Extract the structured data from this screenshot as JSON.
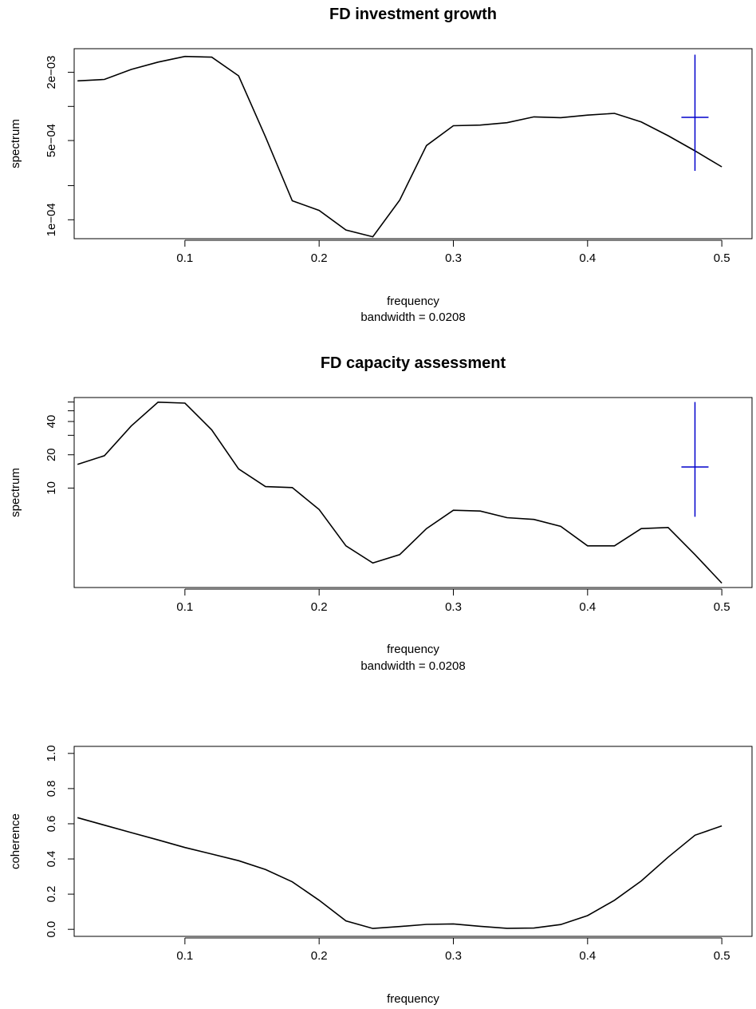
{
  "chart_data": [
    {
      "type": "line",
      "title": "FD investment growth",
      "xlabel": "frequency",
      "sub": "bandwidth = 0.0208",
      "ylabel": "spectrum",
      "log_y": true,
      "xlim": [
        0.0175,
        0.5225
      ],
      "ylim": [
        6.81e-05,
        0.00323
      ],
      "xticks": [
        0.1,
        0.2,
        0.3,
        0.4,
        0.5
      ],
      "xtick_labels": [
        "0.1",
        "0.2",
        "0.3",
        "0.4",
        "0.5"
      ],
      "yticks": [
        0.0001,
        0.0002,
        0.0005,
        0.001,
        0.002
      ],
      "ytick_labels": [
        "1e−04",
        "",
        "5e−04",
        "",
        "2e−03"
      ],
      "x": [
        0.02,
        0.04,
        0.06,
        0.08,
        0.1,
        0.12,
        0.14,
        0.16,
        0.18,
        0.2,
        0.22,
        0.24,
        0.26,
        0.28,
        0.3,
        0.32,
        0.34,
        0.36,
        0.38,
        0.4,
        0.42,
        0.44,
        0.46,
        0.48,
        0.5
      ],
      "y": [
        0.00168,
        0.00173,
        0.00212,
        0.00246,
        0.00276,
        0.00272,
        0.00186,
        0.000539,
        0.000147,
        0.000121,
        8.13e-05,
        7.08e-05,
        0.000149,
        0.000452,
        0.000676,
        0.000684,
        0.000718,
        0.000809,
        0.000796,
        0.000838,
        0.000869,
        0.000729,
        0.000552,
        0.000405,
        0.000293
      ],
      "ci": {
        "x": 0.48,
        "center": 0.000801,
        "lower": 0.00027,
        "upper": 0.00286,
        "color": "#0000cc"
      },
      "line_color": "#000000"
    },
    {
      "type": "line",
      "title": "FD capacity assessment",
      "xlabel": "frequency",
      "sub": "bandwidth = 0.0208",
      "ylabel": "spectrum",
      "log_y": true,
      "xlim": [
        0.0175,
        0.5225
      ],
      "ylim": [
        1.26,
        65.9
      ],
      "xticks": [
        0.1,
        0.2,
        0.3,
        0.4,
        0.5
      ],
      "xtick_labels": [
        "0.1",
        "0.2",
        "0.3",
        "0.4",
        "0.5"
      ],
      "yticks": [
        10,
        20,
        30,
        40,
        50,
        60
      ],
      "ytick_labels": [
        "10",
        "20",
        "",
        "40",
        "",
        ""
      ],
      "x": [
        0.02,
        0.04,
        0.06,
        0.08,
        0.1,
        0.12,
        0.14,
        0.16,
        0.18,
        0.2,
        0.22,
        0.24,
        0.26,
        0.28,
        0.3,
        0.32,
        0.34,
        0.36,
        0.38,
        0.4,
        0.42,
        0.44,
        0.46,
        0.48,
        0.5
      ],
      "y": [
        16.4,
        19.6,
        36.4,
        59.8,
        58.7,
        33.6,
        14.9,
        10.3,
        10.1,
        6.4,
        3.0,
        2.1,
        2.5,
        4.3,
        6.3,
        6.2,
        5.4,
        5.2,
        4.5,
        3.0,
        3.0,
        4.3,
        4.4,
        2.5,
        1.38
      ],
      "ci": {
        "x": 0.48,
        "center": 15.5,
        "lower": 5.5,
        "upper": 60.0,
        "color": "#0000cc"
      },
      "line_color": "#000000"
    },
    {
      "type": "line",
      "title": "",
      "xlabel": "frequency",
      "sub": "",
      "ylabel": "coherence",
      "log_y": false,
      "xlim": [
        0.0175,
        0.5225
      ],
      "ylim": [
        -0.04,
        1.04
      ],
      "xticks": [
        0.1,
        0.2,
        0.3,
        0.4,
        0.5
      ],
      "xtick_labels": [
        "0.1",
        "0.2",
        "0.3",
        "0.4",
        "0.5"
      ],
      "yticks": [
        0.0,
        0.2,
        0.4,
        0.6,
        0.8,
        1.0
      ],
      "ytick_labels": [
        "0.0",
        "0.2",
        "0.4",
        "0.6",
        "0.8",
        "1.0"
      ],
      "x": [
        0.02,
        0.04,
        0.06,
        0.08,
        0.1,
        0.12,
        0.14,
        0.16,
        0.18,
        0.2,
        0.22,
        0.24,
        0.26,
        0.28,
        0.3,
        0.32,
        0.34,
        0.36,
        0.38,
        0.4,
        0.42,
        0.44,
        0.46,
        0.48,
        0.5
      ],
      "y": [
        0.635,
        0.592,
        0.55,
        0.508,
        0.465,
        0.428,
        0.39,
        0.34,
        0.27,
        0.165,
        0.048,
        0.005,
        0.016,
        0.028,
        0.031,
        0.017,
        0.006,
        0.007,
        0.027,
        0.078,
        0.165,
        0.275,
        0.41,
        0.535,
        0.588
      ],
      "line_color": "#000000"
    }
  ]
}
